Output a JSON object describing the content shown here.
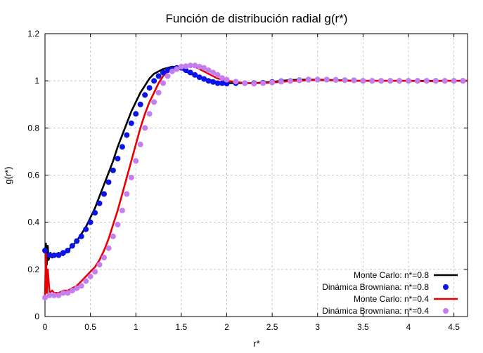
{
  "chart_data": {
    "type": "line",
    "title": "Función de distribución radial g(r*)",
    "xlabel": "r*",
    "ylabel": "g(r*)",
    "xlim": [
      0,
      4.65
    ],
    "ylim": [
      0,
      1.2
    ],
    "x_ticks": [
      "0",
      "0.5",
      "1",
      "1.5",
      "2",
      "2.5",
      "3",
      "3.5",
      "4",
      "4.5"
    ],
    "y_ticks": [
      "0",
      "0.2",
      "0.4",
      "0.6",
      "0.8",
      "1",
      "1.2"
    ],
    "grid": true,
    "legend_position": "bottom-right",
    "series": [
      {
        "name": "Monte Carlo: n*=0.8",
        "kind": "line",
        "color": "#000000",
        "x": [
          0.0,
          0.01,
          0.02,
          0.03,
          0.04,
          0.06,
          0.08,
          0.1,
          0.15,
          0.2,
          0.25,
          0.3,
          0.35,
          0.4,
          0.45,
          0.5,
          0.55,
          0.6,
          0.65,
          0.7,
          0.75,
          0.8,
          0.85,
          0.9,
          0.95,
          1.0,
          1.05,
          1.1,
          1.15,
          1.2,
          1.25,
          1.3,
          1.35,
          1.4,
          1.45,
          1.5,
          1.6,
          1.7,
          1.8,
          1.9,
          2.0,
          2.1,
          2.2,
          2.3,
          2.4,
          2.5,
          2.6,
          2.7,
          2.8,
          2.9,
          3.0,
          3.2,
          3.4,
          3.6,
          3.8,
          4.0,
          4.2,
          4.4,
          4.6,
          4.65
        ],
        "y": [
          0.28,
          0.31,
          0.22,
          0.3,
          0.24,
          0.27,
          0.25,
          0.26,
          0.27,
          0.26,
          0.28,
          0.3,
          0.32,
          0.35,
          0.38,
          0.42,
          0.46,
          0.51,
          0.56,
          0.61,
          0.66,
          0.72,
          0.77,
          0.82,
          0.87,
          0.91,
          0.95,
          0.98,
          1.01,
          1.03,
          1.04,
          1.05,
          1.055,
          1.06,
          1.058,
          1.05,
          1.03,
          1.015,
          1.005,
          0.995,
          0.99,
          0.99,
          0.99,
          0.99,
          0.993,
          0.995,
          1.0,
          1.003,
          1.005,
          1.005,
          1.005,
          1.003,
          1.0,
          1.0,
          1.0,
          1.0,
          1.0,
          1.0,
          1.0,
          1.0
        ]
      },
      {
        "name": "Dinámica Browniana: n*=0.8",
        "kind": "points",
        "color": "#0a14e8",
        "x": [
          0.0,
          0.05,
          0.1,
          0.15,
          0.2,
          0.25,
          0.3,
          0.35,
          0.4,
          0.45,
          0.5,
          0.55,
          0.6,
          0.65,
          0.7,
          0.75,
          0.8,
          0.85,
          0.9,
          0.95,
          1.0,
          1.05,
          1.1,
          1.15,
          1.2,
          1.25,
          1.3,
          1.35,
          1.4,
          1.45,
          1.5,
          1.55,
          1.6,
          1.65,
          1.7,
          1.75,
          1.8,
          1.85,
          1.9,
          1.95,
          2.0,
          2.1,
          2.2,
          2.3,
          2.4,
          2.5,
          2.6,
          2.7,
          2.8,
          2.9,
          3.0,
          3.1,
          3.2,
          3.3,
          3.4,
          3.5,
          3.6,
          3.7,
          3.8,
          3.9,
          4.0,
          4.1,
          4.2,
          4.3,
          4.4,
          4.5,
          4.6
        ],
        "y": [
          0.28,
          0.26,
          0.26,
          0.26,
          0.27,
          0.28,
          0.3,
          0.32,
          0.34,
          0.37,
          0.4,
          0.44,
          0.48,
          0.52,
          0.57,
          0.62,
          0.67,
          0.72,
          0.77,
          0.82,
          0.86,
          0.9,
          0.94,
          0.97,
          1.0,
          1.02,
          1.035,
          1.045,
          1.05,
          1.055,
          1.055,
          1.045,
          1.035,
          1.025,
          1.015,
          1.008,
          1.0,
          0.995,
          0.99,
          0.99,
          0.988,
          0.99,
          0.99,
          0.99,
          0.992,
          0.995,
          0.998,
          1.0,
          1.003,
          1.005,
          1.005,
          1.005,
          1.004,
          1.003,
          1.002,
          1.0,
          1.0,
          1.0,
          1.0,
          1.0,
          1.0,
          1.0,
          1.0,
          1.0,
          1.0,
          1.0,
          1.0
        ]
      },
      {
        "name": "Monte Carlo: n*=0.4",
        "kind": "line",
        "color": "#e80000",
        "x": [
          0.0,
          0.01,
          0.02,
          0.03,
          0.05,
          0.08,
          0.1,
          0.15,
          0.2,
          0.25,
          0.3,
          0.35,
          0.4,
          0.45,
          0.5,
          0.55,
          0.6,
          0.65,
          0.7,
          0.75,
          0.8,
          0.85,
          0.9,
          0.95,
          1.0,
          1.05,
          1.1,
          1.15,
          1.2,
          1.25,
          1.3,
          1.35,
          1.4,
          1.45,
          1.5,
          1.55,
          1.6,
          1.65,
          1.7,
          1.75,
          1.8,
          1.9,
          2.0,
          2.1,
          2.2,
          2.3,
          2.4,
          2.5,
          2.6,
          2.7,
          2.8,
          2.9,
          3.0,
          3.2,
          3.4,
          3.6,
          3.8,
          4.0,
          4.2,
          4.4,
          4.6,
          4.65
        ],
        "y": [
          0.09,
          0.27,
          0.1,
          0.2,
          0.1,
          0.11,
          0.1,
          0.1,
          0.11,
          0.11,
          0.12,
          0.13,
          0.15,
          0.17,
          0.19,
          0.21,
          0.24,
          0.28,
          0.33,
          0.39,
          0.45,
          0.52,
          0.59,
          0.66,
          0.73,
          0.8,
          0.86,
          0.91,
          0.95,
          0.99,
          1.02,
          1.04,
          1.05,
          1.055,
          1.06,
          1.065,
          1.065,
          1.06,
          1.05,
          1.04,
          1.03,
          1.01,
          1.0,
          0.995,
          0.99,
          0.99,
          0.99,
          0.993,
          0.995,
          1.0,
          1.0,
          1.003,
          1.003,
          1.002,
          1.0,
          1.0,
          1.0,
          1.0,
          0.998,
          1.0,
          1.0,
          1.0
        ]
      },
      {
        "name": "Dinámica Browniana: n*=0.4",
        "kind": "points",
        "color": "#c47ef0",
        "x": [
          0.0,
          0.05,
          0.1,
          0.15,
          0.2,
          0.25,
          0.3,
          0.35,
          0.4,
          0.45,
          0.5,
          0.55,
          0.6,
          0.65,
          0.7,
          0.75,
          0.8,
          0.85,
          0.9,
          0.95,
          1.0,
          1.05,
          1.1,
          1.15,
          1.2,
          1.25,
          1.3,
          1.35,
          1.4,
          1.45,
          1.5,
          1.55,
          1.6,
          1.65,
          1.7,
          1.75,
          1.8,
          1.85,
          1.9,
          1.95,
          2.0,
          2.1,
          2.2,
          2.3,
          2.4,
          2.5,
          2.6,
          2.7,
          2.8,
          2.9,
          3.0,
          3.1,
          3.2,
          3.3,
          3.4,
          3.5,
          3.6,
          3.7,
          3.8,
          3.9,
          4.0,
          4.1,
          4.2,
          4.3,
          4.4,
          4.5,
          4.6
        ],
        "y": [
          0.08,
          0.09,
          0.09,
          0.09,
          0.1,
          0.1,
          0.11,
          0.12,
          0.13,
          0.15,
          0.17,
          0.19,
          0.22,
          0.25,
          0.29,
          0.34,
          0.39,
          0.45,
          0.52,
          0.59,
          0.66,
          0.73,
          0.8,
          0.86,
          0.91,
          0.95,
          0.99,
          1.02,
          1.04,
          1.05,
          1.06,
          1.062,
          1.065,
          1.065,
          1.06,
          1.055,
          1.045,
          1.035,
          1.025,
          1.012,
          1.005,
          0.997,
          0.99,
          0.988,
          0.99,
          0.993,
          0.996,
          1.0,
          1.002,
          1.004,
          1.005,
          1.005,
          1.004,
          1.003,
          1.002,
          1.0,
          1.0,
          1.0,
          1.0,
          1.0,
          1.0,
          1.0,
          1.0,
          1.0,
          1.0,
          1.0,
          1.0
        ]
      }
    ]
  }
}
